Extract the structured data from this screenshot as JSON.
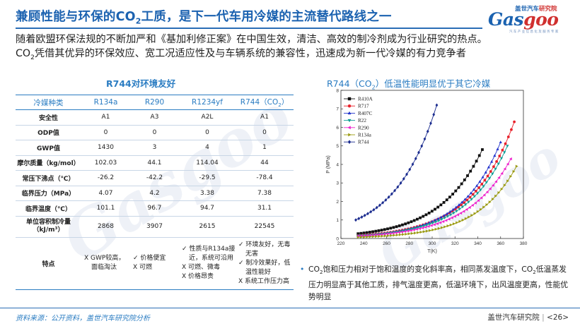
{
  "header": {
    "title_pre": "兼顾性能与环保的CO",
    "title_sub": "2",
    "title_post": "工质，是下一代车用冷媒的主流替代路线之一"
  },
  "logo": {
    "top_blue": "盖世汽车",
    "top_red": "研究院",
    "word_main": "Gas",
    "word_accent": "goo",
    "tagline": "汽车产业信息化及服务专家"
  },
  "intro": {
    "line1": "随着欧盟环保法规的不断加严和《基加利修正案》在中国生效，清洁、高效的制冷剂成为行业研究的热点。",
    "line2_pre": "CO",
    "line2_sub": "2",
    "line2_post": "凭借其优异的环保效应、宽工况适应性及与车辆系统的兼容性，迅速成为新一代冷媒的有力竞争者"
  },
  "table": {
    "title": "R744对环境友好",
    "headers": [
      "冷媒种类",
      "R134a",
      "R290",
      "R1234yf"
    ],
    "header_last_pre": "R744（CO",
    "header_last_sub": "2",
    "header_last_post": "）",
    "rows": [
      {
        "label": "安全性",
        "values": [
          "A1",
          "A3",
          "A2L",
          "A1"
        ]
      },
      {
        "label": "ODP值",
        "values": [
          "0",
          "0",
          "0",
          "0"
        ]
      },
      {
        "label": "GWP值",
        "values": [
          "1430",
          "3",
          "4",
          "1"
        ]
      },
      {
        "label": "摩尔质量（kg/mol）",
        "values": [
          "102.03",
          "44.1",
          "114.04",
          "44"
        ]
      },
      {
        "label": "常压下沸点（℃）",
        "values": [
          "-26.2",
          "-42.2",
          "-29.5",
          "-78.4"
        ]
      },
      {
        "label": "临界压力（MPa）",
        "values": [
          "4.07",
          "4.2",
          "3.38",
          "7.38"
        ]
      },
      {
        "label": "临界温度（℃）",
        "values": [
          "101.1",
          "96.7",
          "94.7",
          "31.1"
        ]
      }
    ],
    "cap_label_1": "单位容积制冷量",
    "cap_label_2": "（kJ/m³）",
    "cap_values": [
      "2868",
      "3907",
      "2615",
      "22545"
    ],
    "features_label": "特点",
    "features": [
      [
        "X  GWP较高，",
        "面临淘汰"
      ],
      [
        "✓  价格便宜",
        "X  可燃"
      ],
      [
        "✓  性质与R134a接",
        "近，系统可沿用",
        "X  可燃、微毒",
        "X  价格昂贵"
      ],
      [
        "✓  环境友好，无毒",
        "无害",
        "✓  制冷效果好，低",
        "温性能好",
        "X  系统工作压力高"
      ]
    ]
  },
  "chart": {
    "title_pre": "R744（CO",
    "title_sub": "2",
    "title_post": "）低温性能明显优于其它冷媒"
  },
  "chart_data": {
    "type": "line",
    "title": "R744（CO2）低温性能明显优于其它冷媒",
    "xlabel": "T(K)",
    "ylabel": "P (MPa)",
    "xlim": [
      220,
      380
    ],
    "ylim": [
      0,
      8
    ],
    "x_ticks": [
      220,
      240,
      260,
      280,
      300,
      320,
      340,
      360,
      380
    ],
    "y_ticks": [
      0,
      1,
      2,
      3,
      4,
      5,
      6,
      7,
      8
    ],
    "grid": false,
    "legend": "top-left",
    "series": [
      {
        "name": "R410A",
        "color": "#111111",
        "marker": "square",
        "start": [
          235,
          0.26
        ],
        "end": [
          344,
          4.8
        ]
      },
      {
        "name": "R717",
        "color": "#e8202a",
        "marker": "circle",
        "start": [
          235,
          0.16
        ],
        "end": [
          372,
          6.3
        ]
      },
      {
        "name": "R407C",
        "color": "#2233cc",
        "marker": "triangle-up",
        "start": [
          235,
          0.14
        ],
        "end": [
          360,
          5.2
        ]
      },
      {
        "name": "R22",
        "color": "#0e9e95",
        "marker": "triangle-down",
        "start": [
          235,
          0.14
        ],
        "end": [
          366,
          5.0
        ]
      },
      {
        "name": "R290",
        "color": "#ee22cc",
        "marker": "triangle-left",
        "start": [
          235,
          0.13
        ],
        "end": [
          369,
          4.3
        ]
      },
      {
        "name": "R134a",
        "color": "#9a9a10",
        "marker": "triangle-right",
        "start": [
          235,
          0.07
        ],
        "end": [
          374,
          3.9
        ]
      },
      {
        "name": "R744",
        "color": "#1b2c8f",
        "marker": "diamond",
        "start": [
          233,
          1.0
        ],
        "end": [
          304,
          7.2
        ]
      }
    ]
  },
  "bullet": {
    "p1": "CO",
    "s1": "2",
    "p2": "饱和压力相对于饱和温度的变化斜率高，相同蒸发温度下，CO",
    "s2": "2",
    "p3": "低温蒸发压力明显高于其他工质，排气温度更高，低温环境下，出风温度更高，性能优势明显"
  },
  "footer": {
    "source": "资料来源：公开资料，盖世汽车研究院分析",
    "org": "盖世汽车研究院",
    "page": "<26>"
  }
}
